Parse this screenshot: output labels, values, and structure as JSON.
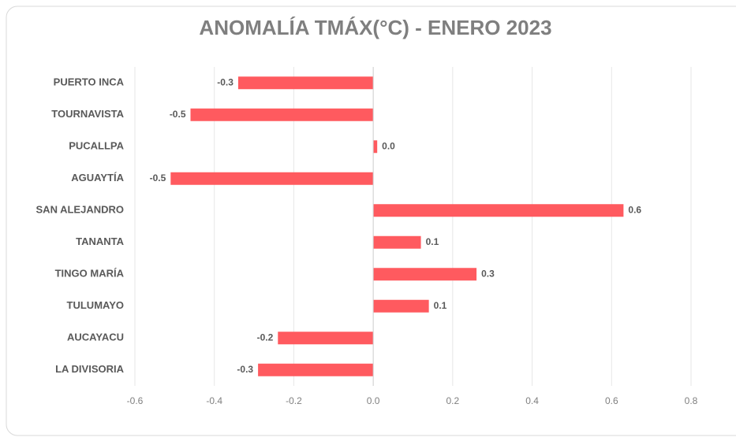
{
  "chart_data": {
    "type": "hbar",
    "title": "ANOMALÍA TMÁX(°C) - ENERO 2023",
    "categories": [
      "PUERTO INCA",
      "TOURNAVISTA",
      "PUCALLPA",
      "AGUAYTÍA",
      "SAN ALEJANDRO",
      "TANANTA",
      "TINGO MARÍA",
      "TULUMAYO",
      "AUCAYACU",
      "LA DIVISORIA"
    ],
    "values": [
      -0.34,
      -0.46,
      0.01,
      -0.51,
      0.63,
      0.12,
      0.26,
      0.14,
      -0.24,
      -0.29
    ],
    "value_labels": [
      "-0.3",
      "-0.5",
      "0.0",
      "-0.5",
      "0.6",
      "0.1",
      "0.3",
      "0.1",
      "-0.2",
      "-0.3"
    ],
    "color": "#ff5a5f",
    "xlim": [
      -0.6,
      0.8
    ],
    "xticks": [
      -0.6,
      -0.4,
      -0.2,
      {
        "value": 0,
        "label": "0.0"
      },
      0.2,
      0.4,
      0.6,
      0.8
    ],
    "grid": true
  }
}
